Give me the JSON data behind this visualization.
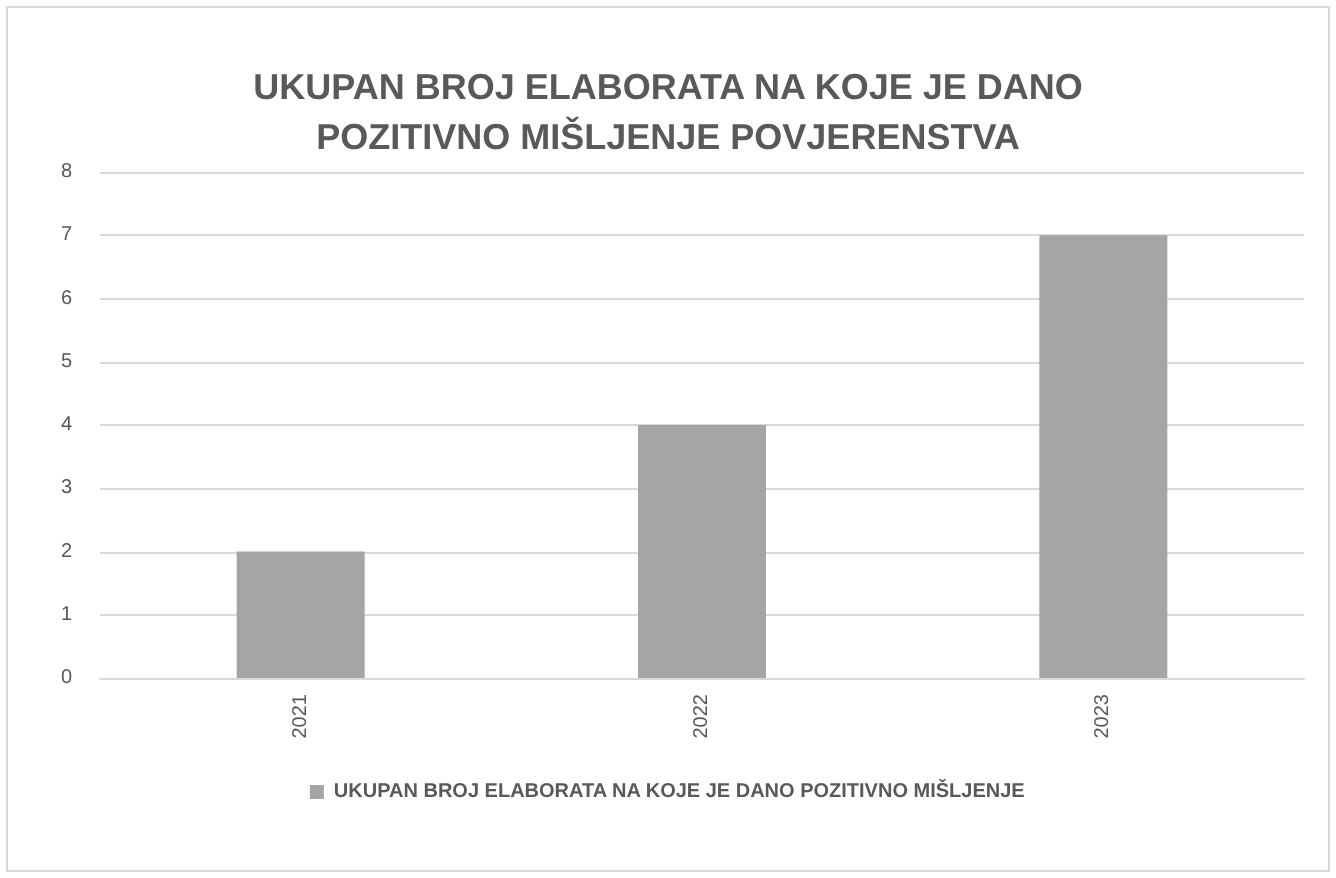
{
  "chart_data": {
    "type": "bar",
    "title": "UKUPAN BROJ ELABORATA NA KOJE JE DANO\nPOZITIVNO MIŠLJENJE POVJERENSTVA",
    "categories": [
      "2021",
      "2022",
      "2023"
    ],
    "series": [
      {
        "name": "UKUPAN BROJ ELABORATA NA KOJE JE DANO POZITIVNO MIŠLJENJE",
        "color": "#a5a5a5",
        "values": [
          2,
          4,
          7
        ]
      }
    ],
    "ylim": [
      0,
      8
    ],
    "yticks": [
      0,
      1,
      2,
      3,
      4,
      5,
      6,
      7,
      8
    ],
    "grid": "y",
    "legend": "bottom"
  }
}
